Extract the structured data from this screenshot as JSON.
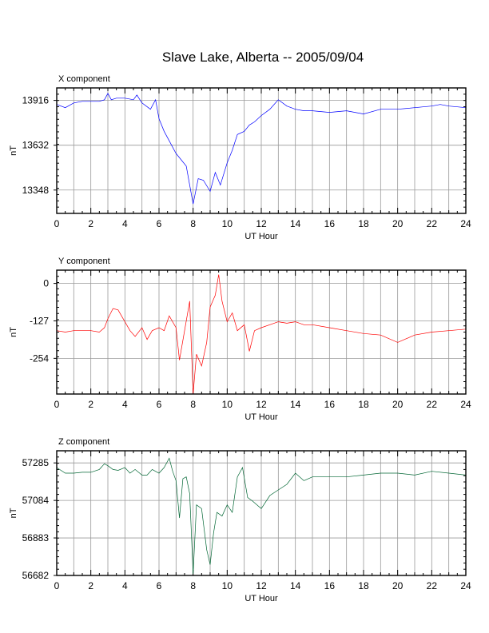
{
  "title": "Slave Lake, Alberta -- 2005/09/04",
  "chart_data": [
    {
      "type": "line",
      "panel_label": "X component",
      "xlabel": "UT Hour",
      "ylabel": "nT",
      "xlim": [
        0,
        24
      ],
      "ylim": [
        13200,
        13995
      ],
      "xticks": [
        "0",
        "2",
        "4",
        "6",
        "8",
        "10",
        "12",
        "14",
        "16",
        "18",
        "20",
        "22",
        "24"
      ],
      "yticks": [
        13916,
        13632,
        13348
      ],
      "color": "#0000ff",
      "grid": true,
      "series": [
        {
          "x": [
            0,
            0.5,
            1,
            1.5,
            2,
            2.5,
            2.8,
            3,
            3.2,
            3.5,
            4,
            4.5,
            4.7,
            5,
            5.5,
            5.8,
            6,
            6.3,
            6.6,
            7,
            7.3,
            7.6,
            8,
            8.3,
            8.6,
            9,
            9.3,
            9.6,
            10,
            10.3,
            10.6,
            11,
            11.3,
            11.6,
            12,
            12.5,
            13,
            13.5,
            14,
            14.5,
            15,
            16,
            17,
            18,
            19,
            20,
            21,
            22,
            22.5,
            23,
            24
          ],
          "y": [
            13890,
            13870,
            13900,
            13910,
            13910,
            13910,
            13920,
            13960,
            13920,
            13930,
            13930,
            13920,
            13950,
            13900,
            13860,
            13920,
            13800,
            13720,
            13660,
            13580,
            13540,
            13500,
            13260,
            13420,
            13410,
            13340,
            13460,
            13380,
            13520,
            13600,
            13700,
            13720,
            13760,
            13780,
            13820,
            13860,
            13920,
            13880,
            13860,
            13850,
            13850,
            13840,
            13850,
            13830,
            13860,
            13860,
            13870,
            13880,
            13890,
            13880,
            13870
          ]
        }
      ]
    },
    {
      "type": "line",
      "panel_label": "Y component",
      "xlabel": "UT Hour",
      "ylabel": "nT",
      "xlim": [
        0,
        24
      ],
      "ylim": [
        -375,
        45
      ],
      "xticks": [
        "0",
        "2",
        "4",
        "6",
        "8",
        "10",
        "12",
        "14",
        "16",
        "18",
        "20",
        "22",
        "24"
      ],
      "yticks": [
        0,
        -127,
        -254
      ],
      "color": "#ff0000",
      "grid": true,
      "series": [
        {
          "x": [
            0,
            0.5,
            1,
            1.5,
            2,
            2.5,
            2.8,
            3,
            3.3,
            3.6,
            4,
            4.3,
            4.6,
            5,
            5.3,
            5.6,
            6,
            6.3,
            6.6,
            7,
            7.2,
            7.5,
            7.8,
            8,
            8.2,
            8.5,
            8.8,
            9,
            9.3,
            9.5,
            9.7,
            10,
            10.3,
            10.6,
            11,
            11.3,
            11.6,
            12,
            12.5,
            13,
            13.5,
            14,
            14.5,
            15,
            16,
            17,
            18,
            19,
            20,
            21,
            22,
            23,
            24
          ],
          "y": [
            -160,
            -165,
            -160,
            -160,
            -160,
            -165,
            -150,
            -120,
            -85,
            -90,
            -130,
            -160,
            -180,
            -150,
            -190,
            -160,
            -150,
            -160,
            -110,
            -150,
            -260,
            -160,
            -60,
            -380,
            -240,
            -280,
            -200,
            -80,
            -40,
            30,
            -60,
            -130,
            -100,
            -160,
            -140,
            -230,
            -160,
            -150,
            -140,
            -130,
            -135,
            -130,
            -140,
            -140,
            -150,
            -160,
            -170,
            -175,
            -200,
            -175,
            -165,
            -160,
            -155
          ]
        }
      ]
    },
    {
      "type": "line",
      "panel_label": "Z component",
      "xlabel": "UT Hour",
      "ylabel": "nT",
      "xlim": [
        0,
        24
      ],
      "ylim": [
        56682,
        57350
      ],
      "xticks": [
        "0",
        "2",
        "4",
        "6",
        "8",
        "10",
        "12",
        "14",
        "16",
        "18",
        "20",
        "22",
        "24"
      ],
      "yticks": [
        57285,
        57084,
        56883,
        56682
      ],
      "color": "#006633",
      "grid": true,
      "series": [
        {
          "x": [
            0,
            0.5,
            1,
            1.5,
            2,
            2.5,
            2.8,
            3,
            3.3,
            3.6,
            4,
            4.3,
            4.6,
            5,
            5.3,
            5.6,
            6,
            6.3,
            6.6,
            6.8,
            7,
            7.2,
            7.4,
            7.6,
            7.8,
            8,
            8.2,
            8.5,
            8.8,
            9,
            9.2,
            9.4,
            9.7,
            10,
            10.3,
            10.6,
            10.9,
            11.2,
            11.5,
            12,
            12.5,
            13,
            13.5,
            14,
            14.5,
            15,
            16,
            17,
            18,
            19,
            20,
            21,
            22,
            23,
            24
          ],
          "y": [
            57260,
            57230,
            57230,
            57235,
            57235,
            57250,
            57280,
            57270,
            57250,
            57245,
            57260,
            57230,
            57250,
            57220,
            57220,
            57250,
            57230,
            57260,
            57310,
            57240,
            57190,
            56990,
            57200,
            57210,
            57120,
            56690,
            57060,
            57040,
            56820,
            56740,
            56910,
            57020,
            57000,
            57060,
            57020,
            57210,
            57260,
            57100,
            57080,
            57040,
            57110,
            57140,
            57170,
            57230,
            57190,
            57210,
            57210,
            57210,
            57220,
            57230,
            57230,
            57220,
            57240,
            57230,
            57220
          ]
        }
      ]
    }
  ]
}
